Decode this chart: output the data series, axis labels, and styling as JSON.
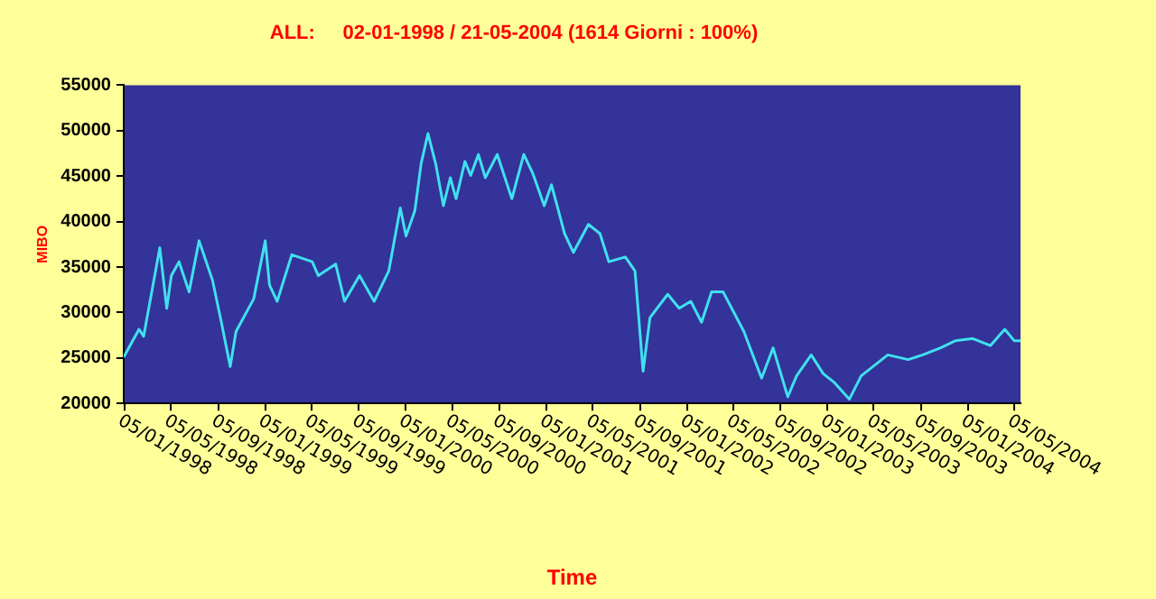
{
  "chart_data": {
    "type": "line",
    "title": "ALL:     02-01-1998 / 21-05-2004 (1614 Giorni : 100%)",
    "xlabel": "Time",
    "ylabel": "MIBO",
    "x": [
      "1998-01-02",
      "1998-02-11",
      "1998-02-23",
      "1998-04-06",
      "1998-04-24",
      "1998-05-06",
      "1998-05-26",
      "1998-06-21",
      "1998-07-17",
      "1998-08-21",
      "1998-09-13",
      "1998-10-06",
      "1998-10-21",
      "1998-12-06",
      "1999-01-05",
      "1999-01-16",
      "1999-02-05",
      "1999-03-15",
      "1999-05-07",
      "1999-05-23",
      "1999-07-07",
      "1999-07-30",
      "1999-09-07",
      "1999-10-15",
      "1999-11-22",
      "1999-12-22",
      "2000-01-06",
      "2000-01-29",
      "2000-02-14",
      "2000-03-03",
      "2000-03-23",
      "2000-04-12",
      "2000-04-30",
      "2000-05-15",
      "2000-06-07",
      "2000-06-22",
      "2000-07-12",
      "2000-07-30",
      "2000-08-30",
      "2000-10-07",
      "2000-11-07",
      "2000-11-30",
      "2000-12-30",
      "2001-01-18",
      "2001-02-21",
      "2001-03-16",
      "2001-04-24",
      "2001-05-24",
      "2001-06-16",
      "2001-07-29",
      "2001-08-23",
      "2001-09-13",
      "2001-10-01",
      "2001-11-16",
      "2001-12-16",
      "2002-01-15",
      "2002-02-12",
      "2002-03-10",
      "2002-04-09",
      "2002-06-02",
      "2002-07-18",
      "2002-08-17",
      "2002-09-24",
      "2002-10-17",
      "2002-11-24",
      "2002-12-25",
      "2003-01-24",
      "2003-03-03",
      "2003-04-03",
      "2003-06-11",
      "2003-08-03",
      "2003-09-10",
      "2003-10-26",
      "2003-12-03",
      "2004-01-18",
      "2004-03-04",
      "2004-04-10",
      "2004-05-05",
      "2004-05-21"
    ],
    "series": [
      {
        "color": "#40e0f0",
        "values": [
          25080,
          28150,
          27380,
          37120,
          30460,
          34050,
          35580,
          32260,
          37890,
          33540,
          28920,
          24050,
          27900,
          31490,
          37890,
          33030,
          31230,
          36350,
          35580,
          34050,
          35330,
          31230,
          34050,
          31230,
          34560,
          41490,
          38410,
          41230,
          46350,
          49680,
          46350,
          41740,
          44820,
          42510,
          46610,
          45070,
          47380,
          44820,
          47380,
          42510,
          47380,
          45330,
          41740,
          44050,
          38670,
          36610,
          39690,
          38670,
          35580,
          36100,
          34560,
          23540,
          29430,
          32000,
          30460,
          31230,
          28920,
          32260,
          32260,
          27900,
          22770,
          26110,
          20720,
          23030,
          25340,
          23280,
          22260,
          20460,
          23030,
          25340,
          24820,
          25340,
          26110,
          26880,
          27130,
          26360,
          28150,
          26880,
          26880
        ]
      }
    ],
    "xlim": [
      "1998-01-02",
      "2004-05-21"
    ],
    "xticks": [
      {
        "value": "1998-01-05",
        "label": "05/01/1998"
      },
      {
        "value": "1998-05-05",
        "label": "05/05/1998"
      },
      {
        "value": "1998-09-05",
        "label": "05/09/1998"
      },
      {
        "value": "1999-01-05",
        "label": "05/01/1999"
      },
      {
        "value": "1999-05-05",
        "label": "05/05/1999"
      },
      {
        "value": "1999-09-05",
        "label": "05/09/1999"
      },
      {
        "value": "2000-01-05",
        "label": "05/01/2000"
      },
      {
        "value": "2000-05-05",
        "label": "05/05/2000"
      },
      {
        "value": "2000-09-05",
        "label": "05/09/2000"
      },
      {
        "value": "2001-01-05",
        "label": "05/01/2001"
      },
      {
        "value": "2001-05-05",
        "label": "05/05/2001"
      },
      {
        "value": "2001-09-05",
        "label": "05/09/2001"
      },
      {
        "value": "2002-01-05",
        "label": "05/01/2002"
      },
      {
        "value": "2002-05-05",
        "label": "05/05/2002"
      },
      {
        "value": "2002-09-05",
        "label": "05/09/2002"
      },
      {
        "value": "2003-01-05",
        "label": "05/01/2003"
      },
      {
        "value": "2003-05-05",
        "label": "05/05/2003"
      },
      {
        "value": "2003-09-05",
        "label": "05/09/2003"
      },
      {
        "value": "2004-01-05",
        "label": "05/01/2004"
      },
      {
        "value": "2004-05-05",
        "label": "05/05/2004"
      }
    ],
    "ylim": [
      20000,
      55000
    ],
    "yticks": [
      20000,
      25000,
      30000,
      35000,
      40000,
      45000,
      50000,
      55000
    ],
    "grid": false,
    "legend": false,
    "marker": "none",
    "line_style": "solid"
  }
}
